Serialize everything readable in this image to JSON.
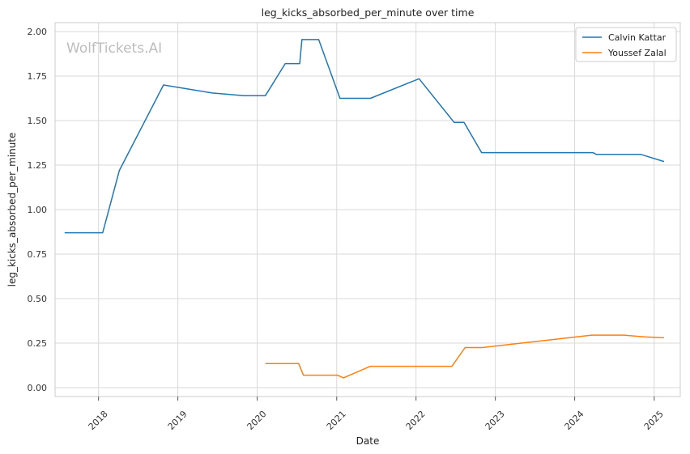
{
  "chart_data": {
    "type": "line",
    "title": "leg_kicks_absorbed_per_minute over time",
    "xlabel": "Date",
    "ylabel": "leg_kicks_absorbed_per_minute",
    "watermark": "WolfTickets.AI",
    "xlim": [
      "2017-06-15",
      "2025-05-01"
    ],
    "ylim": [
      -0.05,
      2.05
    ],
    "x_ticks": [
      "2018",
      "2019",
      "2020",
      "2021",
      "2022",
      "2023",
      "2024",
      "2025"
    ],
    "y_ticks": [
      "0.00",
      "0.25",
      "0.50",
      "0.75",
      "1.00",
      "1.25",
      "1.50",
      "1.75",
      "2.00"
    ],
    "grid": true,
    "legend_position": "top-right",
    "series": [
      {
        "name": "Calvin Kattar",
        "color": "#1f77b4",
        "points": [
          [
            "2017-07-29",
            0.87
          ],
          [
            "2018-01-20",
            0.87
          ],
          [
            "2018-04-07",
            1.22
          ],
          [
            "2018-10-27",
            1.7
          ],
          [
            "2019-06-08",
            1.655
          ],
          [
            "2019-11-02",
            1.64
          ],
          [
            "2020-02-08",
            1.64
          ],
          [
            "2020-05-09",
            1.82
          ],
          [
            "2020-07-15",
            1.82
          ],
          [
            "2020-07-25",
            1.955
          ],
          [
            "2020-10-10",
            1.955
          ],
          [
            "2021-01-16",
            1.625
          ],
          [
            "2021-06-05",
            1.625
          ],
          [
            "2022-01-15",
            1.735
          ],
          [
            "2022-06-25",
            1.49
          ],
          [
            "2022-08-10",
            1.49
          ],
          [
            "2022-10-30",
            1.32
          ],
          [
            "2024-03-25",
            1.32
          ],
          [
            "2024-04-10",
            1.31
          ],
          [
            "2024-11-01",
            1.31
          ],
          [
            "2025-02-15",
            1.27
          ]
        ]
      },
      {
        "name": "Youssef Zalal",
        "color": "#ff7f0e",
        "points": [
          [
            "2020-02-08",
            0.135
          ],
          [
            "2020-07-10",
            0.135
          ],
          [
            "2020-08-01",
            0.07
          ],
          [
            "2021-01-05",
            0.07
          ],
          [
            "2021-02-01",
            0.055
          ],
          [
            "2021-06-05",
            0.12
          ],
          [
            "2022-06-15",
            0.12
          ],
          [
            "2022-08-15",
            0.225
          ],
          [
            "2022-11-01",
            0.225
          ],
          [
            "2024-03-20",
            0.295
          ],
          [
            "2024-08-15",
            0.295
          ],
          [
            "2024-11-15",
            0.285
          ],
          [
            "2025-02-15",
            0.28
          ]
        ]
      }
    ]
  }
}
